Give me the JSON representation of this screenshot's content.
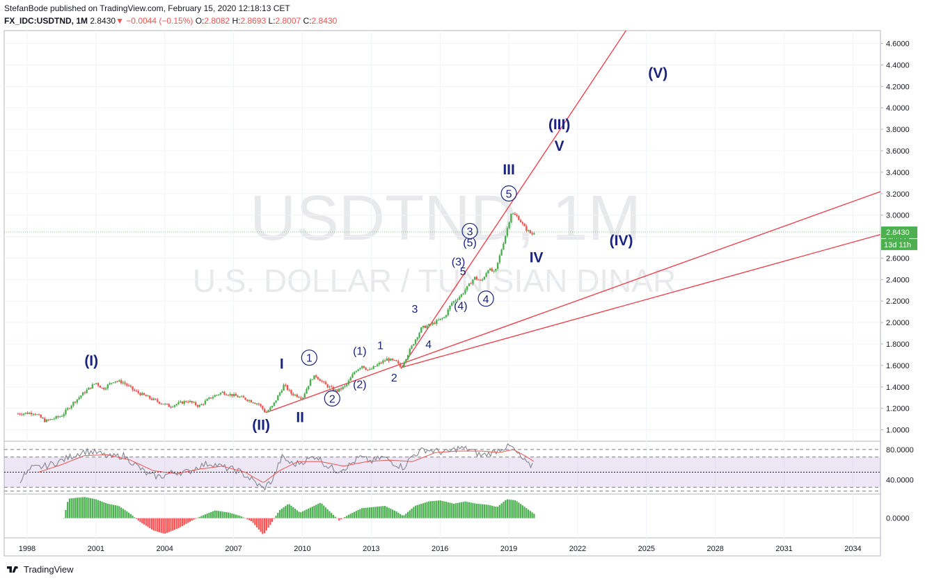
{
  "header": {
    "author_line": "StefanBode published on TradingView.com, February 15, 2020 12:18:13 CET",
    "symbol": "FX_IDC:USDTND, 1M",
    "last": "2.8430",
    "change": "−0.0044 (−0.15%)",
    "open_label": "O:",
    "open": "2.8082",
    "high_label": "H:",
    "high": "2.8693",
    "low_label": "L:",
    "low": "2.8007",
    "close_label": "C:",
    "close": "2.8430"
  },
  "watermark": {
    "title": "USDTND, 1M",
    "subtitle": "U.S. DOLLAR / TUNISIAN DINAR"
  },
  "footer": {
    "brand": "TradingView"
  },
  "colors": {
    "up": "#26a69a",
    "down": "#ef5350",
    "up_candle": "#4caf50",
    "wave_label": "#1a237e",
    "trendline": "#f23645",
    "rsi_line": "#787b86",
    "rsi_ma": "#ef5350",
    "rsi_band": "#7e57c2",
    "price_tag": "#4caf50"
  },
  "chart_data": [
    {
      "type": "line",
      "name_hint": "price",
      "x_ticks": [
        "1998",
        "2001",
        "2004",
        "2007",
        "2010",
        "2013",
        "2016",
        "2019",
        "2022",
        "2025",
        "2028",
        "2031",
        "2034"
      ],
      "y_ticks": [
        "1.0000",
        "1.2000",
        "1.4000",
        "1.6000",
        "1.8000",
        "2.0000",
        "2.2000",
        "2.4000",
        "2.6000",
        "2.8000",
        "3.0000",
        "3.2000",
        "3.4000",
        "3.6000",
        "3.8000",
        "4.0000",
        "4.2000",
        "4.4000",
        "4.6000"
      ],
      "ylim": [
        0.9,
        4.72
      ],
      "xlim": [
        1997.0,
        2035.2
      ],
      "price_tag": {
        "value": 2.843,
        "label": "2.8430",
        "countdown": "13d 11h"
      },
      "anchors": [
        [
          1997.6,
          1.15
        ],
        [
          1998.3,
          1.16
        ],
        [
          1998.8,
          1.08
        ],
        [
          1999.5,
          1.13
        ],
        [
          2000.0,
          1.25
        ],
        [
          2000.5,
          1.35
        ],
        [
          2001.0,
          1.44
        ],
        [
          2001.3,
          1.38
        ],
        [
          2001.8,
          1.46
        ],
        [
          2002.2,
          1.44
        ],
        [
          2002.7,
          1.36
        ],
        [
          2003.5,
          1.28
        ],
        [
          2004.2,
          1.22
        ],
        [
          2005.0,
          1.27
        ],
        [
          2005.5,
          1.22
        ],
        [
          2006.0,
          1.3
        ],
        [
          2006.5,
          1.35
        ],
        [
          2007.0,
          1.32
        ],
        [
          2007.5,
          1.29
        ],
        [
          2008.1,
          1.24
        ],
        [
          2008.4,
          1.16
        ],
        [
          2008.7,
          1.22
        ],
        [
          2009.2,
          1.42
        ],
        [
          2009.5,
          1.34
        ],
        [
          2010.0,
          1.3
        ],
        [
          2010.4,
          1.48
        ],
        [
          2010.6,
          1.5
        ],
        [
          2011.0,
          1.42
        ],
        [
          2011.3,
          1.38
        ],
        [
          2011.5,
          1.36
        ],
        [
          2011.9,
          1.41
        ],
        [
          2012.3,
          1.55
        ],
        [
          2012.6,
          1.6
        ],
        [
          2012.9,
          1.55
        ],
        [
          2013.3,
          1.61
        ],
        [
          2013.7,
          1.66
        ],
        [
          2014.1,
          1.63
        ],
        [
          2014.3,
          1.58
        ],
        [
          2014.7,
          1.75
        ],
        [
          2015.2,
          1.95
        ],
        [
          2015.6,
          1.98
        ],
        [
          2016.2,
          2.05
        ],
        [
          2016.5,
          2.18
        ],
        [
          2016.9,
          2.25
        ],
        [
          2017.2,
          2.33
        ],
        [
          2017.5,
          2.42
        ],
        [
          2017.8,
          2.38
        ],
        [
          2018.1,
          2.5
        ],
        [
          2018.4,
          2.46
        ],
        [
          2018.6,
          2.62
        ],
        [
          2018.9,
          2.85
        ],
        [
          2019.1,
          3.02
        ],
        [
          2019.4,
          2.98
        ],
        [
          2019.7,
          2.88
        ],
        [
          2020.0,
          2.82
        ],
        [
          2020.1,
          2.843
        ]
      ],
      "trendlines": [
        {
          "from": [
            2008.4,
            1.16
          ],
          "to": [
            2035.2,
            3.22
          ]
        },
        {
          "from": [
            2014.3,
            1.58
          ],
          "to": [
            2035.2,
            2.82
          ]
        },
        {
          "from": [
            2014.3,
            1.57
          ],
          "to": [
            2024.2,
            4.75
          ]
        }
      ],
      "wave_labels": [
        {
          "text": "(I)",
          "x": 2000.8,
          "y": 1.6,
          "size": "big"
        },
        {
          "text": "(II)",
          "x": 2008.2,
          "y": 1.0,
          "size": "big"
        },
        {
          "text": "I",
          "x": 2009.1,
          "y": 1.57,
          "size": "big"
        },
        {
          "text": "II",
          "x": 2009.9,
          "y": 1.07,
          "size": "big"
        },
        {
          "text": "1",
          "x": 2010.3,
          "y": 1.64,
          "size": "mid",
          "circle": true
        },
        {
          "text": "2",
          "x": 2011.3,
          "y": 1.26,
          "size": "mid",
          "circle": true
        },
        {
          "text": "(1)",
          "x": 2012.5,
          "y": 1.7,
          "size": "mid"
        },
        {
          "text": "(2)",
          "x": 2012.5,
          "y": 1.39,
          "size": "mid"
        },
        {
          "text": "1",
          "x": 2013.4,
          "y": 1.75,
          "size": "mid"
        },
        {
          "text": "2",
          "x": 2014.0,
          "y": 1.45,
          "size": "mid"
        },
        {
          "text": "3",
          "x": 2014.9,
          "y": 2.09,
          "size": "mid"
        },
        {
          "text": "4",
          "x": 2015.5,
          "y": 1.76,
          "size": "mid"
        },
        {
          "text": "(3)",
          "x": 2016.8,
          "y": 2.53,
          "size": "mid"
        },
        {
          "text": "5",
          "x": 2017.0,
          "y": 2.44,
          "size": "mid"
        },
        {
          "text": "(4)",
          "x": 2016.9,
          "y": 2.12,
          "size": "mid"
        },
        {
          "text": "(5)",
          "x": 2017.3,
          "y": 2.71,
          "size": "mid"
        },
        {
          "text": "3",
          "x": 2017.3,
          "y": 2.82,
          "size": "mid",
          "circle": true
        },
        {
          "text": "4",
          "x": 2018.0,
          "y": 2.19,
          "size": "mid",
          "circle": true
        },
        {
          "text": "5",
          "x": 2019.0,
          "y": 3.17,
          "size": "mid",
          "circle": true
        },
        {
          "text": "III",
          "x": 2019.0,
          "y": 3.38,
          "size": "big"
        },
        {
          "text": "IV",
          "x": 2020.2,
          "y": 2.56,
          "size": "big"
        },
        {
          "text": "(III)",
          "x": 2021.2,
          "y": 3.8,
          "size": "big"
        },
        {
          "text": "V",
          "x": 2021.2,
          "y": 3.6,
          "size": "big"
        },
        {
          "text": "(IV)",
          "x": 2023.9,
          "y": 2.72,
          "size": "big"
        },
        {
          "text": "(V)",
          "x": 2025.5,
          "y": 4.28,
          "size": "big"
        }
      ]
    },
    {
      "type": "line",
      "name_hint": "oscillator",
      "y_ticks": [
        "80.0000",
        "40.0000"
      ],
      "ylim": [
        22,
        90
      ],
      "levels": [
        80,
        70,
        50,
        30,
        25
      ],
      "anchors": [
        [
          1997.7,
          40
        ],
        [
          1998.2,
          55
        ],
        [
          1998.8,
          58
        ],
        [
          1999.4,
          64
        ],
        [
          2000.0,
          72
        ],
        [
          2000.5,
          78
        ],
        [
          2001.0,
          76
        ],
        [
          2001.6,
          70
        ],
        [
          2002.2,
          72
        ],
        [
          2002.8,
          58
        ],
        [
          2003.3,
          46
        ],
        [
          2003.8,
          44
        ],
        [
          2004.4,
          50
        ],
        [
          2005.0,
          50
        ],
        [
          2005.5,
          58
        ],
        [
          2006.0,
          62
        ],
        [
          2006.6,
          56
        ],
        [
          2007.2,
          52
        ],
        [
          2007.8,
          40
        ],
        [
          2008.3,
          28
        ],
        [
          2008.7,
          40
        ],
        [
          2009.1,
          70
        ],
        [
          2009.6,
          60
        ],
        [
          2010.2,
          66
        ],
        [
          2010.6,
          72
        ],
        [
          2011.0,
          60
        ],
        [
          2011.5,
          52
        ],
        [
          2012.0,
          58
        ],
        [
          2012.5,
          70
        ],
        [
          2013.0,
          64
        ],
        [
          2013.5,
          70
        ],
        [
          2014.0,
          62
        ],
        [
          2014.4,
          56
        ],
        [
          2014.8,
          72
        ],
        [
          2015.3,
          80
        ],
        [
          2015.8,
          78
        ],
        [
          2016.3,
          76
        ],
        [
          2016.8,
          82
        ],
        [
          2017.3,
          80
        ],
        [
          2017.8,
          72
        ],
        [
          2018.3,
          76
        ],
        [
          2018.7,
          82
        ],
        [
          2019.1,
          84
        ],
        [
          2019.5,
          70
        ],
        [
          2019.9,
          58
        ],
        [
          2020.1,
          62
        ]
      ],
      "ma_anchors": [
        [
          1998.5,
          50
        ],
        [
          1999.5,
          60
        ],
        [
          2000.5,
          72
        ],
        [
          2001.5,
          73
        ],
        [
          2002.5,
          66
        ],
        [
          2003.5,
          52
        ],
        [
          2004.5,
          48
        ],
        [
          2005.5,
          54
        ],
        [
          2006.5,
          58
        ],
        [
          2007.5,
          50
        ],
        [
          2008.3,
          36
        ],
        [
          2009.0,
          52
        ],
        [
          2009.8,
          64
        ],
        [
          2010.8,
          64
        ],
        [
          2011.8,
          58
        ],
        [
          2012.8,
          64
        ],
        [
          2013.8,
          66
        ],
        [
          2014.8,
          64
        ],
        [
          2015.8,
          76
        ],
        [
          2016.8,
          78
        ],
        [
          2017.8,
          78
        ],
        [
          2018.6,
          76
        ],
        [
          2019.2,
          80
        ],
        [
          2019.8,
          70
        ],
        [
          2020.1,
          64
        ]
      ]
    },
    {
      "type": "bar",
      "name_hint": "histogram",
      "y_ticks": [
        "0.0000"
      ],
      "ylim": [
        -0.34,
        0.42
      ],
      "anchors": [
        [
          1999.6,
          0.0
        ],
        [
          1999.8,
          0.35
        ],
        [
          2000.5,
          0.38
        ],
        [
          2001.0,
          0.34
        ],
        [
          2001.5,
          0.26
        ],
        [
          2002.0,
          0.22
        ],
        [
          2002.5,
          0.08
        ],
        [
          2002.9,
          -0.06
        ],
        [
          2003.5,
          -0.22
        ],
        [
          2004.0,
          -0.28
        ],
        [
          2004.6,
          -0.18
        ],
        [
          2005.2,
          -0.04
        ],
        [
          2005.6,
          0.04
        ],
        [
          2006.2,
          0.14
        ],
        [
          2006.8,
          0.1
        ],
        [
          2007.3,
          0.04
        ],
        [
          2007.8,
          -0.06
        ],
        [
          2008.3,
          -0.3
        ],
        [
          2008.6,
          -0.12
        ],
        [
          2009.0,
          0.14
        ],
        [
          2009.4,
          0.26
        ],
        [
          2009.9,
          0.1
        ],
        [
          2010.4,
          0.2
        ],
        [
          2010.8,
          0.28
        ],
        [
          2011.2,
          0.12
        ],
        [
          2011.6,
          -0.04
        ],
        [
          2012.1,
          0.08
        ],
        [
          2012.6,
          0.18
        ],
        [
          2013.1,
          0.2
        ],
        [
          2013.6,
          0.22
        ],
        [
          2014.1,
          0.12
        ],
        [
          2014.4,
          0.04
        ],
        [
          2014.9,
          0.22
        ],
        [
          2015.5,
          0.3
        ],
        [
          2016.0,
          0.32
        ],
        [
          2016.6,
          0.26
        ],
        [
          2017.1,
          0.3
        ],
        [
          2017.6,
          0.26
        ],
        [
          2018.1,
          0.24
        ],
        [
          2018.5,
          0.2
        ],
        [
          2018.9,
          0.34
        ],
        [
          2019.3,
          0.32
        ],
        [
          2019.7,
          0.2
        ],
        [
          2020.1,
          0.08
        ]
      ]
    }
  ]
}
